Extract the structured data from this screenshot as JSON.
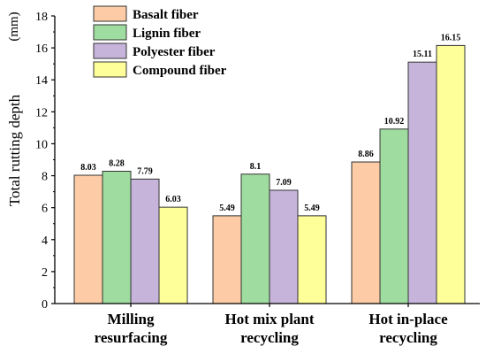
{
  "chart_data": {
    "type": "bar",
    "title": "",
    "xlabel": "",
    "ylabel": "Total rutting depth",
    "ylabel_unit": "(mm)",
    "categories": [
      [
        "Milling",
        "resurfacing"
      ],
      [
        "Hot mix plant",
        "recycling"
      ],
      [
        "Hot in-place",
        "recycling"
      ]
    ],
    "ylim": [
      0,
      18
    ],
    "yticks": [
      0,
      2,
      4,
      6,
      8,
      10,
      12,
      14,
      16,
      18
    ],
    "grid": false,
    "legend_position": "top-left",
    "series": [
      {
        "name": "Basalt fiber",
        "color": "#FDCCA6",
        "values": [
          8.03,
          5.49,
          8.86
        ],
        "labels": [
          "8.03",
          "5.49",
          "8.86"
        ]
      },
      {
        "name": "Lignin fiber",
        "color": "#9FDC9F",
        "values": [
          8.28,
          8.1,
          10.92
        ],
        "labels": [
          "8.28",
          "8.1",
          "10.92"
        ]
      },
      {
        "name": "Polyester fiber",
        "color": "#C6B4DB",
        "values": [
          7.79,
          7.09,
          15.11
        ],
        "labels": [
          "7.79",
          "7.09",
          "15.11"
        ]
      },
      {
        "name": "Compound fiber",
        "color": "#FFFF99",
        "values": [
          6.03,
          5.49,
          16.15
        ],
        "labels": [
          "6.03",
          "5.49",
          "16.15"
        ]
      }
    ]
  }
}
